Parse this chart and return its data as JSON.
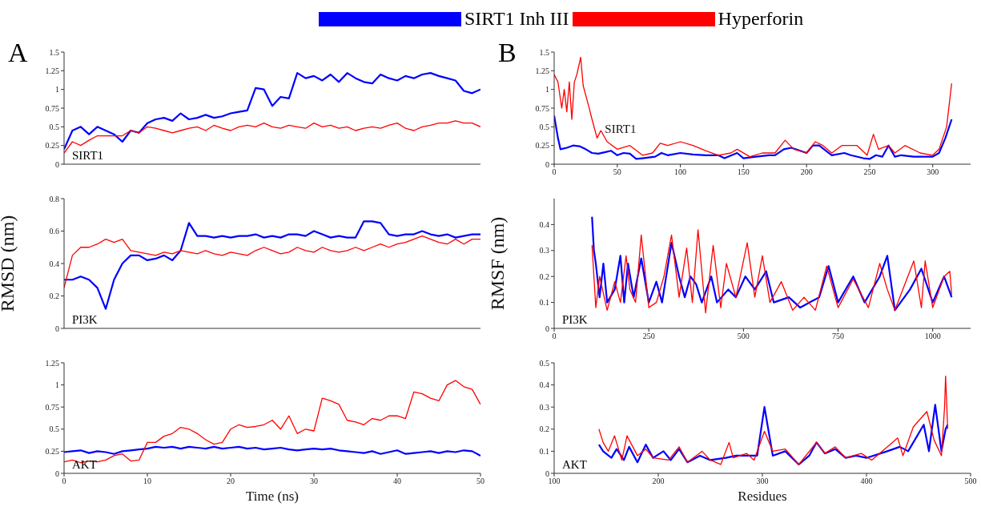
{
  "chart_data": [
    {
      "type": "line",
      "title": "A",
      "annotations": [
        "SIRT1"
      ],
      "legend": "top",
      "tick_labels": "y",
      "marker": "none",
      "line_style": "solid",
      "xlim": [
        0,
        50
      ],
      "xticks": [
        0,
        10,
        20,
        30,
        40,
        50
      ],
      "ylim": [
        0,
        1.5
      ],
      "yticks": [
        0,
        0.25,
        0.5,
        0.75,
        1,
        1.25,
        1.5
      ],
      "x": [
        0,
        1,
        2,
        3,
        4,
        5,
        6,
        7,
        8,
        9,
        10,
        11,
        12,
        13,
        14,
        15,
        16,
        17,
        18,
        19,
        20,
        21,
        22,
        23,
        24,
        25,
        26,
        27,
        28,
        29,
        30,
        31,
        32,
        33,
        34,
        35,
        36,
        37,
        38,
        39,
        40,
        41,
        42,
        43,
        44,
        45,
        46,
        47,
        48,
        49,
        50
      ],
      "series": [
        {
          "name": "SIRT1 Inh III",
          "color": "#0000ff",
          "values": [
            0.2,
            0.45,
            0.5,
            0.4,
            0.5,
            0.45,
            0.4,
            0.3,
            0.45,
            0.42,
            0.55,
            0.6,
            0.62,
            0.58,
            0.68,
            0.6,
            0.62,
            0.66,
            0.62,
            0.64,
            0.68,
            0.7,
            0.72,
            1.02,
            1.0,
            0.78,
            0.9,
            0.88,
            1.22,
            1.15,
            1.18,
            1.12,
            1.2,
            1.1,
            1.22,
            1.15,
            1.1,
            1.08,
            1.2,
            1.15,
            1.12,
            1.18,
            1.15,
            1.2,
            1.22,
            1.18,
            1.15,
            1.12,
            0.98,
            0.95,
            1.0
          ]
        },
        {
          "name": "Hyperforin",
          "color": "#ff0000",
          "values": [
            0.15,
            0.3,
            0.25,
            0.32,
            0.38,
            0.38,
            0.38,
            0.38,
            0.45,
            0.42,
            0.5,
            0.48,
            0.45,
            0.42,
            0.45,
            0.48,
            0.5,
            0.45,
            0.52,
            0.48,
            0.45,
            0.5,
            0.52,
            0.5,
            0.55,
            0.5,
            0.48,
            0.52,
            0.5,
            0.48,
            0.55,
            0.5,
            0.52,
            0.48,
            0.5,
            0.45,
            0.48,
            0.5,
            0.48,
            0.52,
            0.55,
            0.48,
            0.45,
            0.5,
            0.52,
            0.55,
            0.55,
            0.58,
            0.55,
            0.55,
            0.5
          ]
        }
      ]
    },
    {
      "type": "line",
      "ylabel": "RMSD (nm)",
      "annotations": [
        "PI3K"
      ],
      "tick_labels": "y",
      "marker": "none",
      "line_style": "solid",
      "xlim": [
        0,
        50
      ],
      "xticks": [
        0,
        10,
        20,
        30,
        40,
        50
      ],
      "ylim": [
        0,
        0.8
      ],
      "yticks": [
        0,
        0.2,
        0.4,
        0.6,
        0.8
      ],
      "x": [
        0,
        1,
        2,
        3,
        4,
        5,
        6,
        7,
        8,
        9,
        10,
        11,
        12,
        13,
        14,
        15,
        16,
        17,
        18,
        19,
        20,
        21,
        22,
        23,
        24,
        25,
        26,
        27,
        28,
        29,
        30,
        31,
        32,
        33,
        34,
        35,
        36,
        37,
        38,
        39,
        40,
        41,
        42,
        43,
        44,
        45,
        46,
        47,
        48,
        49,
        50
      ],
      "series": [
        {
          "color": "#0000ff",
          "values": [
            0.3,
            0.3,
            0.32,
            0.3,
            0.25,
            0.12,
            0.3,
            0.4,
            0.45,
            0.45,
            0.42,
            0.43,
            0.45,
            0.42,
            0.48,
            0.65,
            0.57,
            0.57,
            0.56,
            0.57,
            0.56,
            0.57,
            0.57,
            0.58,
            0.56,
            0.57,
            0.56,
            0.58,
            0.58,
            0.57,
            0.6,
            0.58,
            0.56,
            0.57,
            0.56,
            0.56,
            0.66,
            0.66,
            0.65,
            0.58,
            0.57,
            0.58,
            0.58,
            0.6,
            0.58,
            0.57,
            0.58,
            0.56,
            0.57,
            0.58,
            0.58
          ]
        },
        {
          "color": "#ff0000",
          "values": [
            0.25,
            0.45,
            0.5,
            0.5,
            0.52,
            0.55,
            0.53,
            0.55,
            0.48,
            0.47,
            0.46,
            0.45,
            0.47,
            0.46,
            0.48,
            0.47,
            0.46,
            0.48,
            0.46,
            0.45,
            0.47,
            0.46,
            0.45,
            0.48,
            0.5,
            0.48,
            0.46,
            0.47,
            0.5,
            0.48,
            0.47,
            0.5,
            0.48,
            0.47,
            0.48,
            0.5,
            0.48,
            0.5,
            0.52,
            0.5,
            0.52,
            0.53,
            0.55,
            0.57,
            0.55,
            0.53,
            0.52,
            0.55,
            0.52,
            0.55,
            0.55
          ]
        }
      ]
    },
    {
      "type": "line",
      "xlabel": "Time (ns)",
      "annotations": [
        "AKT"
      ],
      "marker": "none",
      "line_style": "solid",
      "xlim": [
        0,
        50
      ],
      "xticks": [
        0,
        10,
        20,
        30,
        40,
        50
      ],
      "ylim": [
        0,
        1.25
      ],
      "yticks": [
        0,
        0.25,
        0.5,
        0.75,
        1,
        1.25
      ],
      "x": [
        0,
        1,
        2,
        3,
        4,
        5,
        6,
        7,
        8,
        9,
        10,
        11,
        12,
        13,
        14,
        15,
        16,
        17,
        18,
        19,
        20,
        21,
        22,
        23,
        24,
        25,
        26,
        27,
        28,
        29,
        30,
        31,
        32,
        33,
        34,
        35,
        36,
        37,
        38,
        39,
        40,
        41,
        42,
        43,
        44,
        45,
        46,
        47,
        48,
        49,
        50
      ],
      "series": [
        {
          "color": "#0000ff",
          "values": [
            0.24,
            0.25,
            0.26,
            0.23,
            0.25,
            0.24,
            0.22,
            0.25,
            0.26,
            0.27,
            0.28,
            0.3,
            0.29,
            0.3,
            0.28,
            0.3,
            0.29,
            0.28,
            0.3,
            0.28,
            0.29,
            0.3,
            0.28,
            0.29,
            0.27,
            0.28,
            0.29,
            0.27,
            0.26,
            0.27,
            0.28,
            0.27,
            0.28,
            0.26,
            0.25,
            0.24,
            0.23,
            0.25,
            0.22,
            0.24,
            0.26,
            0.22,
            0.23,
            0.24,
            0.25,
            0.23,
            0.25,
            0.24,
            0.26,
            0.25,
            0.2
          ]
        },
        {
          "color": "#ff0000",
          "values": [
            0.13,
            0.15,
            0.12,
            0.14,
            0.13,
            0.15,
            0.2,
            0.22,
            0.14,
            0.15,
            0.35,
            0.35,
            0.42,
            0.45,
            0.52,
            0.5,
            0.45,
            0.38,
            0.33,
            0.35,
            0.5,
            0.55,
            0.52,
            0.53,
            0.55,
            0.6,
            0.5,
            0.65,
            0.45,
            0.5,
            0.48,
            0.85,
            0.82,
            0.78,
            0.6,
            0.58,
            0.55,
            0.62,
            0.6,
            0.65,
            0.65,
            0.62,
            0.92,
            0.9,
            0.85,
            0.82,
            1.0,
            1.05,
            0.98,
            0.95,
            0.78
          ]
        }
      ]
    },
    {
      "type": "line",
      "title": "B",
      "annotations": [
        {
          "text": "SIRT1",
          "x": 37,
          "y": 0.47
        }
      ],
      "marker": "none",
      "line_style": "solid",
      "xlim": [
        0,
        330
      ],
      "xticks": [
        0,
        50,
        100,
        150,
        200,
        250,
        300
      ],
      "ylim": [
        0,
        1.5
      ],
      "yticks": [
        0,
        0.25,
        0.5,
        0.75,
        1,
        1.25,
        1.5
      ],
      "series": [
        {
          "color": "#0000ff",
          "x": [
            0,
            3,
            5,
            10,
            15,
            20,
            25,
            30,
            35,
            40,
            45,
            50,
            55,
            60,
            65,
            70,
            80,
            85,
            90,
            100,
            110,
            120,
            130,
            135,
            145,
            150,
            160,
            170,
            175,
            182,
            188,
            195,
            200,
            205,
            210,
            220,
            230,
            235,
            245,
            250,
            255,
            260,
            265,
            270,
            275,
            285,
            295,
            300,
            305,
            310,
            315
          ],
          "values": [
            0.65,
            0.35,
            0.2,
            0.22,
            0.25,
            0.24,
            0.2,
            0.15,
            0.14,
            0.16,
            0.18,
            0.12,
            0.15,
            0.14,
            0.07,
            0.08,
            0.1,
            0.15,
            0.12,
            0.15,
            0.13,
            0.12,
            0.12,
            0.08,
            0.15,
            0.08,
            0.1,
            0.12,
            0.12,
            0.2,
            0.22,
            0.18,
            0.15,
            0.25,
            0.25,
            0.12,
            0.15,
            0.12,
            0.08,
            0.07,
            0.12,
            0.1,
            0.25,
            0.1,
            0.12,
            0.1,
            0.1,
            0.1,
            0.15,
            0.35,
            0.6
          ]
        },
        {
          "color": "#ff0000",
          "x": [
            0,
            3,
            6,
            8,
            10,
            12,
            14,
            16,
            18,
            21,
            23,
            27,
            30,
            34,
            37,
            42,
            50,
            60,
            70,
            78,
            84,
            90,
            100,
            110,
            120,
            130,
            140,
            145,
            155,
            165,
            175,
            183,
            190,
            200,
            207,
            213,
            220,
            228,
            240,
            248,
            253,
            257,
            265,
            270,
            278,
            290,
            300,
            305,
            311,
            315
          ],
          "values": [
            1.2,
            1.1,
            0.75,
            1.0,
            0.7,
            1.1,
            0.6,
            1.1,
            1.2,
            1.43,
            1.05,
            0.8,
            0.6,
            0.35,
            0.45,
            0.3,
            0.2,
            0.25,
            0.12,
            0.15,
            0.28,
            0.25,
            0.3,
            0.25,
            0.18,
            0.12,
            0.15,
            0.2,
            0.1,
            0.15,
            0.15,
            0.32,
            0.2,
            0.15,
            0.3,
            0.25,
            0.15,
            0.25,
            0.25,
            0.12,
            0.4,
            0.2,
            0.25,
            0.15,
            0.25,
            0.15,
            0.12,
            0.2,
            0.5,
            1.08
          ]
        }
      ]
    },
    {
      "type": "line",
      "ylabel": "RMSF (nm)",
      "annotations": [
        "PI3K"
      ],
      "marker": "none",
      "line_style": "solid",
      "xlim": [
        0,
        1100
      ],
      "xticks": [
        0,
        250,
        500,
        750,
        1000
      ],
      "ylim": [
        0,
        0.5
      ],
      "yticks": [
        0,
        0.1,
        0.2,
        0.3,
        0.4
      ],
      "series": [
        {
          "color": "#0000ff",
          "x": [
            100,
            105,
            110,
            120,
            130,
            140,
            160,
            175,
            185,
            195,
            210,
            230,
            250,
            270,
            285,
            310,
            330,
            345,
            360,
            375,
            390,
            415,
            430,
            460,
            480,
            505,
            530,
            560,
            580,
            620,
            650,
            700,
            725,
            750,
            790,
            820,
            860,
            880,
            900,
            940,
            970,
            1000,
            1030,
            1050
          ],
          "values": [
            0.43,
            0.3,
            0.25,
            0.12,
            0.25,
            0.1,
            0.15,
            0.28,
            0.1,
            0.25,
            0.12,
            0.27,
            0.1,
            0.18,
            0.1,
            0.33,
            0.2,
            0.12,
            0.2,
            0.17,
            0.1,
            0.2,
            0.1,
            0.15,
            0.12,
            0.2,
            0.15,
            0.22,
            0.1,
            0.12,
            0.08,
            0.12,
            0.24,
            0.1,
            0.2,
            0.1,
            0.2,
            0.28,
            0.07,
            0.15,
            0.23,
            0.1,
            0.2,
            0.12
          ]
        },
        {
          "color": "#ff0000",
          "x": [
            100,
            110,
            120,
            140,
            160,
            175,
            190,
            200,
            215,
            230,
            250,
            270,
            290,
            310,
            330,
            350,
            365,
            380,
            400,
            420,
            440,
            455,
            480,
            510,
            530,
            550,
            570,
            600,
            630,
            660,
            690,
            720,
            750,
            790,
            830,
            860,
            880,
            900,
            950,
            970,
            980,
            1000,
            1030,
            1045,
            1050
          ],
          "values": [
            0.32,
            0.08,
            0.2,
            0.07,
            0.18,
            0.1,
            0.28,
            0.15,
            0.1,
            0.36,
            0.08,
            0.1,
            0.2,
            0.36,
            0.12,
            0.31,
            0.1,
            0.38,
            0.06,
            0.32,
            0.08,
            0.25,
            0.12,
            0.33,
            0.12,
            0.28,
            0.1,
            0.18,
            0.07,
            0.12,
            0.07,
            0.24,
            0.08,
            0.19,
            0.08,
            0.25,
            0.15,
            0.07,
            0.26,
            0.08,
            0.26,
            0.08,
            0.2,
            0.22,
            0.13
          ]
        }
      ]
    },
    {
      "type": "line",
      "xlabel": "Residues",
      "annotations": [
        "AKT"
      ],
      "marker": "none",
      "line_style": "solid",
      "xlim": [
        100,
        500
      ],
      "xticks": [
        100,
        200,
        300,
        400,
        500
      ],
      "ylim": [
        0,
        0.5
      ],
      "yticks": [
        0,
        0.1,
        0.2,
        0.3,
        0.4,
        0.5
      ],
      "series": [
        {
          "color": "#0000ff",
          "x": [
            143,
            147,
            155,
            160,
            167,
            172,
            180,
            188,
            195,
            205,
            212,
            220,
            228,
            240,
            250,
            265,
            275,
            285,
            295,
            302,
            310,
            322,
            335,
            345,
            352,
            360,
            370,
            380,
            390,
            400,
            420,
            432,
            440,
            455,
            460,
            466,
            472,
            476,
            478
          ],
          "values": [
            0.13,
            0.1,
            0.07,
            0.11,
            0.06,
            0.12,
            0.05,
            0.13,
            0.07,
            0.1,
            0.06,
            0.11,
            0.05,
            0.08,
            0.06,
            0.07,
            0.08,
            0.08,
            0.08,
            0.3,
            0.08,
            0.1,
            0.04,
            0.08,
            0.14,
            0.09,
            0.11,
            0.07,
            0.08,
            0.07,
            0.1,
            0.12,
            0.1,
            0.22,
            0.1,
            0.31,
            0.1,
            0.2,
            0.22
          ]
        },
        {
          "color": "#ff0000",
          "x": [
            143,
            147,
            152,
            158,
            165,
            170,
            180,
            188,
            195,
            210,
            220,
            228,
            242,
            250,
            260,
            268,
            272,
            285,
            292,
            302,
            310,
            322,
            335,
            352,
            360,
            370,
            380,
            395,
            405,
            420,
            430,
            435,
            445,
            458,
            465,
            472,
            475,
            476,
            478
          ],
          "values": [
            0.2,
            0.14,
            0.1,
            0.17,
            0.06,
            0.17,
            0.08,
            0.11,
            0.07,
            0.06,
            0.12,
            0.05,
            0.1,
            0.06,
            0.04,
            0.14,
            0.07,
            0.09,
            0.06,
            0.19,
            0.1,
            0.11,
            0.04,
            0.14,
            0.09,
            0.12,
            0.07,
            0.09,
            0.06,
            0.12,
            0.16,
            0.08,
            0.21,
            0.28,
            0.15,
            0.08,
            0.3,
            0.44,
            0.2
          ]
        }
      ]
    }
  ]
}
